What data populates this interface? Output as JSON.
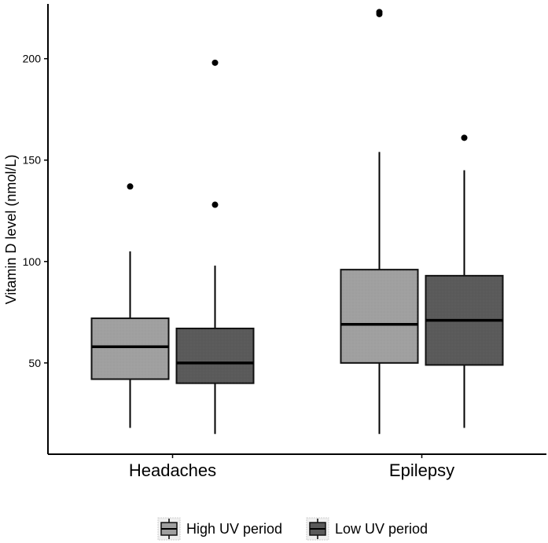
{
  "chart_data": {
    "type": "box",
    "ylabel": "Vitamin D level (nmol/L)",
    "xlabel": "",
    "ylim": [
      5,
      227
    ],
    "yticks": [
      50,
      100,
      150,
      200
    ],
    "grid": false,
    "legend_position": "bottom",
    "categories": [
      "Headaches",
      "Epilepsy"
    ],
    "series": [
      {
        "name": "High UV period",
        "color": "#a0a0a0",
        "boxes": [
          {
            "whisker_low": 18,
            "q1": 42,
            "median": 58,
            "q3": 72,
            "whisker_high": 105,
            "outliers": [
              137
            ]
          },
          {
            "whisker_low": 15,
            "q1": 50,
            "median": 69,
            "q3": 96,
            "whisker_high": 154,
            "outliers": [
              222,
              223
            ]
          }
        ]
      },
      {
        "name": "Low UV period",
        "color": "#5a5a5a",
        "boxes": [
          {
            "whisker_low": 15,
            "q1": 40,
            "median": 50,
            "q3": 67,
            "whisker_high": 98,
            "outliers": [
              128,
              198
            ]
          },
          {
            "whisker_low": 18,
            "q1": 49,
            "median": 71,
            "q3": 93,
            "whisker_high": 145,
            "outliers": [
              161
            ]
          }
        ]
      }
    ]
  }
}
